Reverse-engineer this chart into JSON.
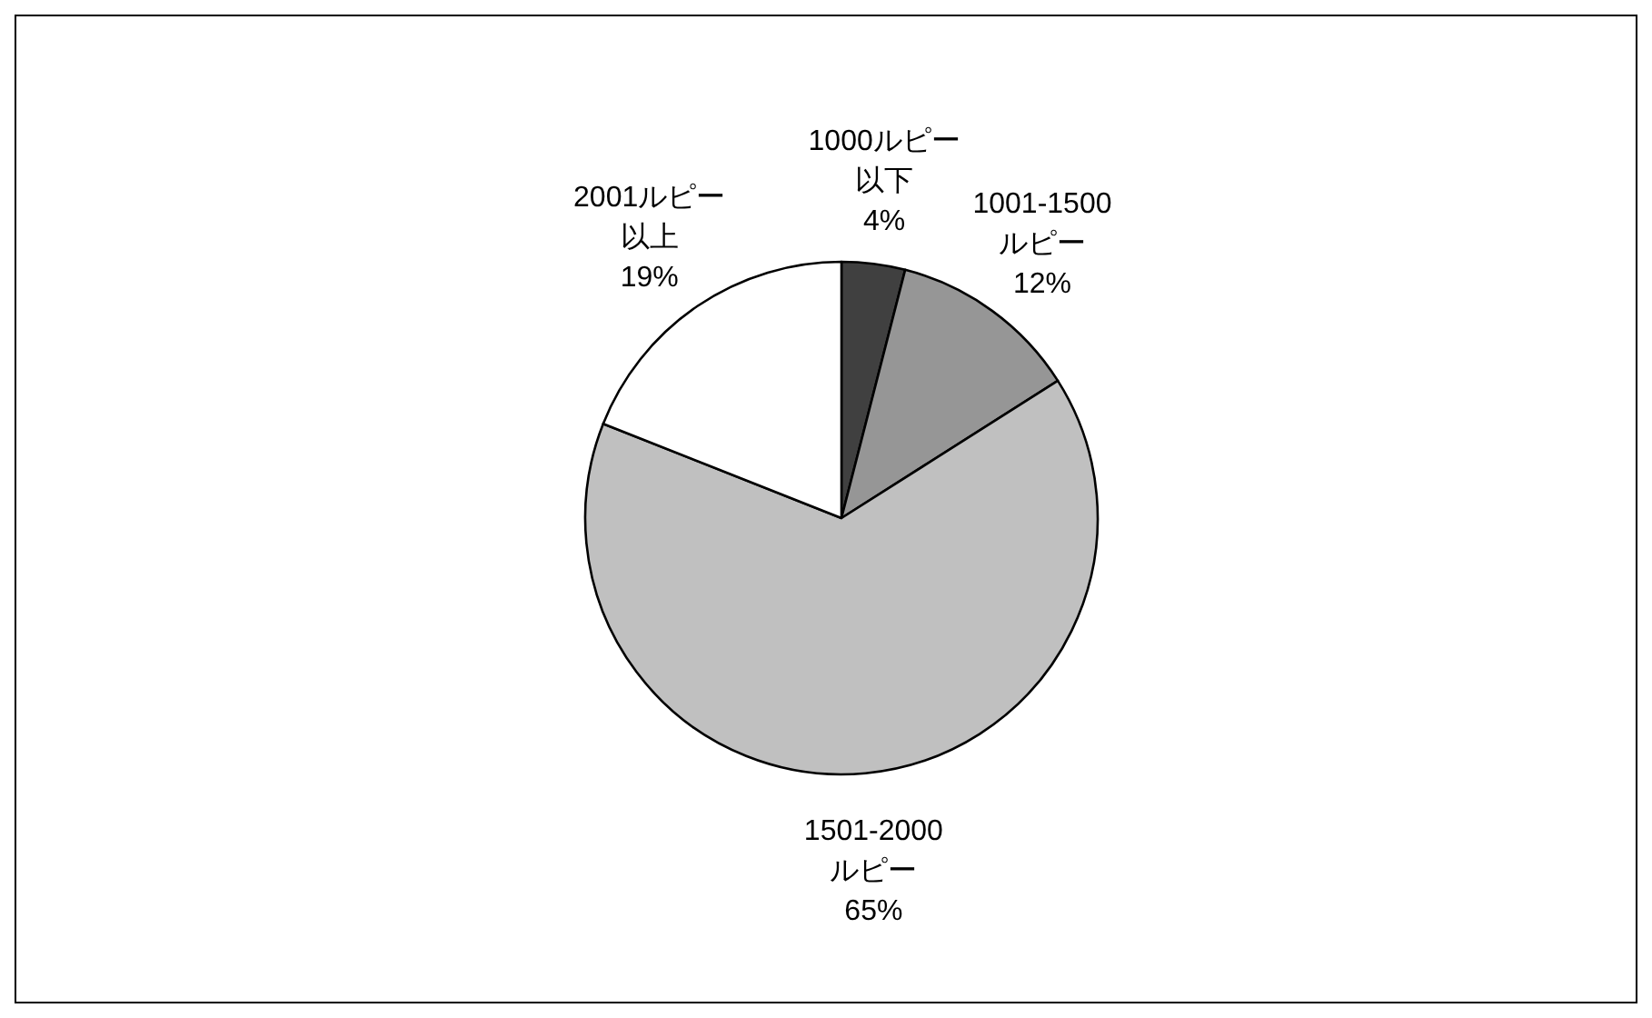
{
  "chart_data": {
    "type": "pie",
    "categories": [
      "1000ルピー以下",
      "1001-1500ルピー",
      "1501-2000ルピー",
      "2001ルピー以上"
    ],
    "values": [
      4,
      12,
      65,
      19
    ],
    "value_labels": [
      "4%",
      "12%",
      "65%",
      "19%"
    ],
    "colors": [
      "#404040",
      "#969696",
      "#c0c0c0",
      "#ffffff"
    ]
  }
}
